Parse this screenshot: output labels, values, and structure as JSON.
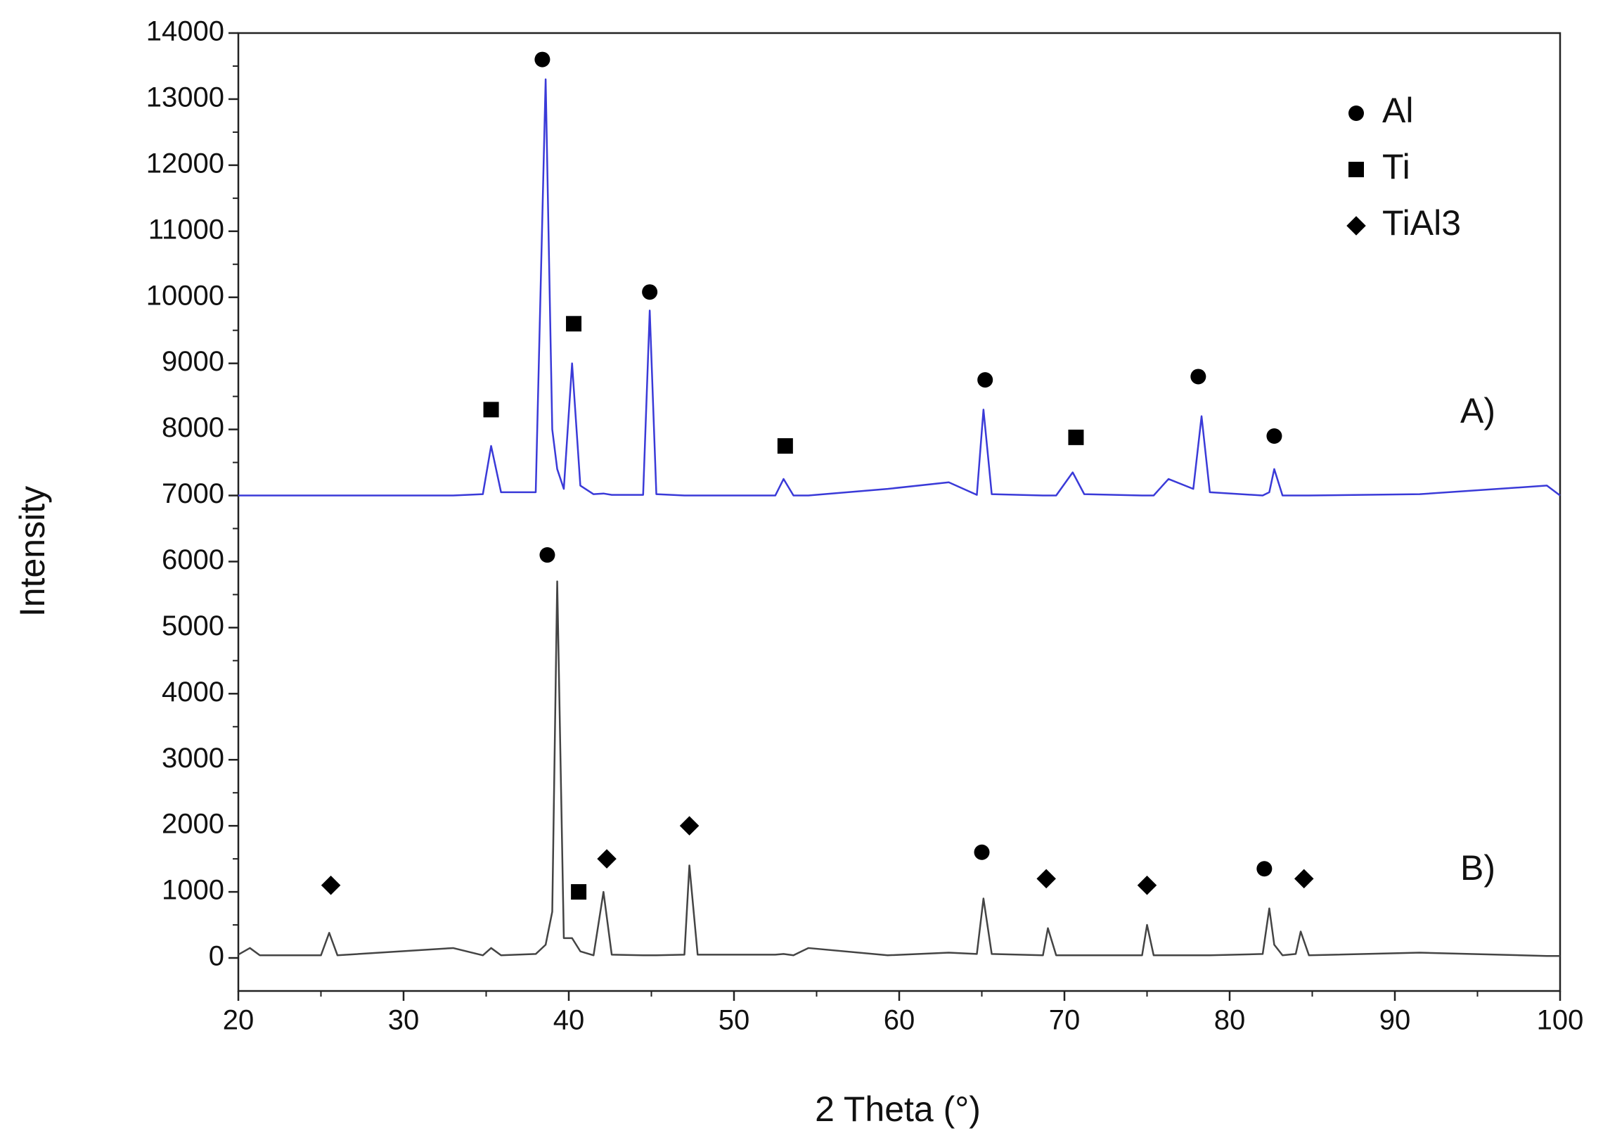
{
  "chart_data": {
    "type": "line",
    "xlabel": "2 Theta (°)",
    "ylabel": "Intensity",
    "xlim": [
      20,
      100
    ],
    "ylim": [
      -500,
      14000
    ],
    "xticks": [
      20,
      30,
      40,
      50,
      60,
      70,
      80,
      90,
      100
    ],
    "yticks": [
      0,
      1000,
      2000,
      3000,
      4000,
      5000,
      6000,
      7000,
      8000,
      9000,
      10000,
      11000,
      12000,
      13000,
      14000
    ],
    "xticks_minor": [
      25,
      35,
      45,
      55,
      65,
      75,
      85,
      95
    ],
    "yticks_minor": [
      500,
      1500,
      2500,
      3500,
      4500,
      5500,
      6500,
      7500,
      8500,
      9500,
      10500,
      11500,
      12500,
      13500
    ],
    "x": [
      20,
      20.7,
      21.3,
      25,
      25.5,
      26,
      33,
      34.8,
      35.3,
      35.9,
      38,
      38.6,
      39,
      39.3,
      39.7,
      40.2,
      40.7,
      41.5,
      42.1,
      42.6,
      44.5,
      44.9,
      45.3,
      47,
      47.3,
      47.8,
      52.5,
      53,
      53.6,
      54.5,
      59.3,
      63,
      64.7,
      65.1,
      65.6,
      68.7,
      69,
      69.5,
      70.5,
      71.2,
      74.7,
      75,
      75.4,
      76.3,
      77.8,
      78.3,
      78.8,
      82,
      82.4,
      82.7,
      83.2,
      84,
      84.3,
      84.8,
      91.5,
      99.2,
      100
    ],
    "series": [
      {
        "name": "A)",
        "color": "#3a3ad8",
        "values": [
          7000,
          7000,
          7000,
          7000,
          7000,
          7000,
          7000,
          7020,
          7750,
          7050,
          7050,
          13300,
          8000,
          7400,
          7100,
          9000,
          7150,
          7020,
          7030,
          7010,
          7010,
          9800,
          7020,
          7000,
          7000,
          7000,
          7000,
          7250,
          7000,
          7000,
          7100,
          7200,
          7010,
          8300,
          7020,
          7000,
          7000,
          7000,
          7350,
          7020,
          7000,
          7000,
          7000,
          7250,
          7100,
          8200,
          7050,
          7000,
          7050,
          7400,
          7000,
          7000,
          7000,
          7000,
          7020,
          7150,
          7000
        ]
      },
      {
        "name": "B)",
        "color": "#444444",
        "values": [
          50,
          150,
          40,
          40,
          380,
          40,
          150,
          40,
          150,
          40,
          60,
          200,
          700,
          5700,
          300,
          300,
          100,
          40,
          1000,
          50,
          40,
          40,
          40,
          50,
          1400,
          50,
          50,
          60,
          40,
          150,
          40,
          80,
          60,
          900,
          60,
          40,
          450,
          40,
          40,
          40,
          40,
          500,
          40,
          40,
          40,
          40,
          40,
          60,
          750,
          200,
          40,
          60,
          400,
          40,
          80,
          30,
          30
        ]
      }
    ],
    "phases": [
      {
        "name": "Al",
        "marker": "circle",
        "x": [
          38.4,
          44.9,
          65.2,
          78.1,
          82.7,
          38.7,
          65.0,
          82.1
        ],
        "y": [
          13600,
          10080,
          8750,
          8800,
          7900,
          6100,
          1600,
          1350
        ]
      },
      {
        "name": "Ti",
        "marker": "square",
        "x": [
          35.3,
          40.3,
          53.1,
          70.7,
          40.6
        ],
        "y": [
          8300,
          9600,
          7750,
          7880,
          1000
        ]
      },
      {
        "name": "TiAl3",
        "marker": "diamond",
        "x": [
          25.6,
          42.3,
          47.3,
          68.9,
          75.0,
          84.5
        ],
        "y": [
          1100,
          1500,
          2000,
          1200,
          1100,
          1200
        ]
      }
    ]
  }
}
